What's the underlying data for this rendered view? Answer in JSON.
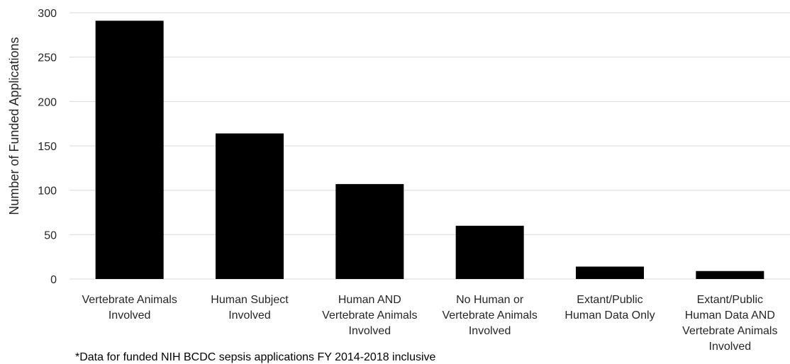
{
  "chart_data": {
    "type": "bar",
    "categories": [
      [
        "Vertebrate Animals",
        "Involved"
      ],
      [
        "Human Subject",
        "Involved"
      ],
      [
        "Human AND",
        "Vertebrate Animals",
        "Involved"
      ],
      [
        "No Human or",
        "Vertebrate Animals",
        "Involved"
      ],
      [
        "Extant/Public",
        "Human Data Only"
      ],
      [
        "Extant/Public",
        "Human Data AND",
        "Vertebrate Animals",
        "Involved"
      ]
    ],
    "values": [
      291,
      164,
      107,
      60,
      14,
      9
    ],
    "ylabel": "Number of Funded Applications",
    "xlabel": "",
    "ylim": [
      0,
      300
    ],
    "yticks": [
      0,
      50,
      100,
      150,
      200,
      250,
      300
    ],
    "grid": true,
    "bar_color": "#000000",
    "grid_color": "#d9d9d9"
  },
  "footnote": "*Data for funded NIH BCDC sepsis applications FY 2014-2018 inclusive"
}
